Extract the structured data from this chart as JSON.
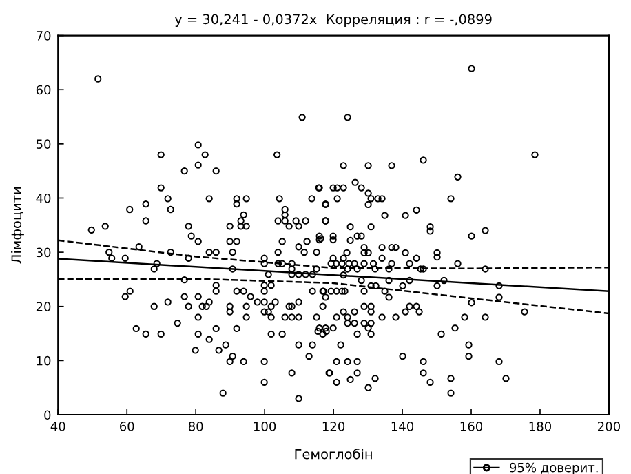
{
  "chart_data": {
    "type": "scatter",
    "title": "y = 30,241 - 0,0372x  Корреляция : r = -,0899",
    "xlabel": "Гемоглобін",
    "ylabel": "Лімфоцити",
    "xlim": [
      40,
      200
    ],
    "ylim": [
      0,
      70
    ],
    "xticks": [
      40,
      60,
      80,
      100,
      120,
      140,
      160,
      180,
      200
    ],
    "yticks": [
      0,
      10,
      20,
      30,
      40,
      50,
      60,
      70
    ],
    "grid": false,
    "legend": "bottom right",
    "marker": "circle",
    "series": [
      {
        "color": "#000000",
        "x": [
          51.6,
          110.9,
          69.9,
          80.7,
          82.7,
          103.6,
          76.7,
          80.7,
          85.9,
          69.9,
          115.7,
          71.9,
          83.9,
          91.9,
          91.9,
          94.7,
          104.3,
          113.7,
          65.5,
          117.7,
          60.8,
          72.7,
          93.9,
          105.9,
          105.9,
          65.5,
          93.1,
          103.9,
          105.9,
          109.1,
          111.9,
          117.7,
          49.7,
          53.7,
          77.9,
          89.9,
          93.1,
          94.7,
          107.1,
          109.9,
          160.1,
          124.1,
          178.5,
          122.9,
          130.1,
          136.9,
          146.1,
          156.1,
          126.3,
          115.9,
          119.9,
          121.1,
          122.9,
          128.1,
          130.1,
          121.1,
          130.9,
          132.9,
          134.1,
          154.1,
          117.7,
          130.1,
          134.9,
          140.9,
          144.1,
          117.7,
          124.9,
          130.9,
          148.1,
          148.1,
          164.1,
          78.7,
          80.7,
          89.9,
          91.9,
          105.1,
          109.9,
          112.3,
          116.3,
          54.8,
          55.6,
          59.5,
          63.5,
          72.7,
          83.9,
          85.9,
          90.7,
          77.9,
          103.9,
          111.5,
          115.1,
          99.9,
          99.9,
          103.9,
          105.1,
          107.9,
          107.9,
          68.7,
          67.9,
          90.7,
          101.1,
          107.9,
          109.9,
          111.9,
          113.9,
          115.1,
          76.7,
          85.9,
          85.9,
          91.9,
          93.9,
          95.9,
          99.9,
          99.9,
          101.9,
          113.9,
          117.1,
          60.9,
          59.5,
          76.7,
          80.7,
          67.9,
          71.9,
          77.9,
          81.9,
          83.1,
          83.9,
          89.9,
          89.9,
          94.7,
          97.9,
          99.9,
          101.9,
          103.1,
          99.9,
          101.1,
          107.1,
          107.9,
          109.9,
          80.7,
          94.7,
          101.9,
          105.9,
          107.9,
          109.9,
          115.1,
          74.7,
          62.7,
          65.5,
          69.9,
          80.7,
          85.9,
          91.9,
          101.9,
          105.1,
          115.5,
          117.9,
          83.9,
          109.9,
          113.9,
          88.7,
          79.9,
          86.7,
          112.9,
          90.7,
          89.9,
          93.9,
          99.9,
          107.9,
          118.7,
          99.9,
          87.9,
          109.9,
          160.1,
          115.9,
          115.9,
          119.9,
          119.9,
          124.9,
          126.9,
          128.1,
          134.1,
          136.9,
          138.1,
          128.9,
          128.9,
          130.1,
          123.9,
          140.9,
          150.1,
          150.1,
          119.9,
          122.9,
          134.1,
          144.1,
          119.3,
          120.8,
          122.5,
          124.5,
          126.1,
          128.9,
          131.6,
          136.9,
          142.1,
          156.1,
          124.1,
          126.9,
          132.1,
          136.1,
          145.3,
          146.1,
          164.1,
          122.9,
          128.1,
          136.1,
          142.1,
          152.1,
          130.9,
          132.3,
          140.1,
          150.1,
          168.1,
          116.9,
          119.3,
          120.9,
          122.5,
          123.3,
          128.9,
          134.9,
          136.1,
          168.1,
          117.7,
          160.1,
          116.9,
          128.9,
          130.9,
          142.1,
          144.1,
          175.5,
          122.9,
          126.1,
          130.9,
          140.9,
          144.9,
          120.9,
          124.1,
          134.1,
          138.1,
          158.1,
          164.1,
          124.1,
          126.1,
          128.9,
          130.9,
          115.9,
          117.7,
          119.9,
          130.1,
          155.3,
          116.9,
          126.9,
          130.9,
          151.3,
          122.1,
          159.3,
          140.1,
          159.3,
          120.9,
          124.1,
          126.9,
          146.1,
          168.1,
          118.9,
          126.9,
          146.1,
          120.9,
          124.9,
          132.1,
          154.1,
          170.1,
          148.1,
          130.1,
          154.1
        ],
        "values": [
          62.0,
          54.9,
          48.0,
          49.8,
          48.0,
          48.0,
          45.0,
          46.1,
          45.0,
          41.9,
          41.9,
          39.9,
          39.9,
          39.9,
          38.9,
          39.9,
          39.9,
          39.9,
          38.9,
          38.9,
          37.9,
          37.9,
          36.9,
          37.9,
          36.9,
          35.8,
          35.8,
          35.8,
          35.8,
          35.8,
          35.8,
          35.8,
          34.1,
          34.8,
          34.8,
          34.8,
          34.8,
          34.8,
          34.8,
          34.8,
          63.9,
          54.9,
          48.0,
          46.0,
          46.0,
          46.0,
          47.0,
          43.9,
          42.9,
          41.9,
          41.9,
          41.9,
          41.9,
          41.9,
          40.9,
          39.9,
          39.9,
          39.9,
          39.9,
          39.9,
          38.8,
          38.8,
          36.8,
          36.8,
          37.8,
          35.8,
          34.7,
          34.7,
          34.7,
          33.9,
          34.0,
          33.0,
          32.0,
          32.0,
          32.0,
          32.0,
          31.0,
          32.0,
          32.5,
          30.0,
          28.9,
          28.9,
          31.0,
          30.0,
          30.0,
          30.0,
          30.0,
          28.9,
          30.0,
          30.0,
          30.0,
          28.9,
          27.9,
          27.9,
          27.9,
          27.9,
          26.9,
          27.9,
          26.9,
          26.9,
          25.9,
          25.9,
          25.9,
          25.9,
          25.9,
          26.9,
          24.9,
          23.9,
          22.8,
          22.8,
          22.8,
          21.8,
          23.9,
          22.8,
          23.9,
          22.8,
          22.8,
          22.8,
          21.8,
          21.8,
          21.8,
          20.0,
          20.8,
          20.0,
          20.0,
          20.0,
          20.8,
          20.0,
          19.0,
          20.0,
          20.8,
          20.8,
          20.0,
          20.8,
          19.0,
          19.0,
          20.0,
          20.0,
          20.8,
          18.0,
          18.0,
          18.0,
          18.0,
          18.0,
          18.0,
          18.0,
          16.9,
          15.9,
          14.9,
          14.9,
          14.9,
          15.9,
          15.9,
          14.9,
          14.9,
          15.4,
          15.4,
          13.9,
          12.9,
          12.9,
          12.9,
          11.9,
          11.9,
          10.8,
          10.8,
          9.8,
          9.8,
          9.8,
          7.7,
          7.7,
          6.0,
          4.0,
          3.0,
          33.0,
          33.0,
          32.3,
          33.0,
          32.3,
          32.2,
          33.0,
          33.0,
          30.9,
          30.9,
          30.9,
          30.9,
          29.9,
          29.9,
          29.9,
          29.9,
          29.9,
          29.1,
          28.9,
          28.9,
          28.9,
          28.9,
          27.9,
          27.9,
          27.9,
          27.9,
          27.9,
          27.9,
          27.9,
          27.9,
          27.9,
          27.9,
          26.9,
          26.9,
          26.9,
          26.9,
          26.9,
          26.9,
          26.9,
          25.8,
          24.8,
          24.8,
          24.8,
          24.8,
          23.8,
          23.8,
          23.8,
          23.8,
          23.8,
          22.8,
          22.8,
          22.8,
          22.8,
          22.8,
          22.8,
          22.8,
          21.7,
          21.7,
          21.7,
          20.7,
          20.0,
          20.0,
          20.0,
          20.0,
          20.0,
          19.0,
          19.0,
          19.0,
          19.0,
          19.0,
          19.0,
          18.0,
          18.0,
          18.0,
          18.0,
          18.0,
          18.0,
          16.9,
          16.9,
          16.9,
          16.9,
          16.0,
          16.0,
          16.0,
          16.0,
          16.0,
          14.9,
          14.9,
          14.9,
          14.9,
          12.9,
          12.9,
          10.8,
          10.8,
          9.8,
          9.8,
          9.8,
          9.8,
          9.8,
          7.7,
          7.7,
          7.7,
          6.0,
          6.5,
          6.7,
          6.7,
          6.7,
          6.0,
          5.0,
          4.0
        ]
      },
      {
        "type": "line",
        "marker": "none",
        "line_style": "solid",
        "color": "#000000",
        "x": [
          40,
          80,
          120,
          160,
          200
        ],
        "values": [
          28.8,
          27.3,
          25.8,
          24.3,
          22.8
        ]
      },
      {
        "type": "line",
        "marker": "none",
        "line_style": "dashed",
        "name": "95% доверит.",
        "color": "#000000",
        "x": [
          40,
          80,
          120,
          160,
          200
        ],
        "values": [
          32.2,
          29.2,
          27.1,
          27.0,
          27.2
        ]
      },
      {
        "type": "line",
        "marker": "none",
        "line_style": "dashed",
        "color": "#000000",
        "x": [
          40,
          80,
          120,
          160,
          200
        ],
        "values": [
          25.1,
          25.1,
          24.3,
          21.5,
          18.7
        ]
      }
    ]
  }
}
